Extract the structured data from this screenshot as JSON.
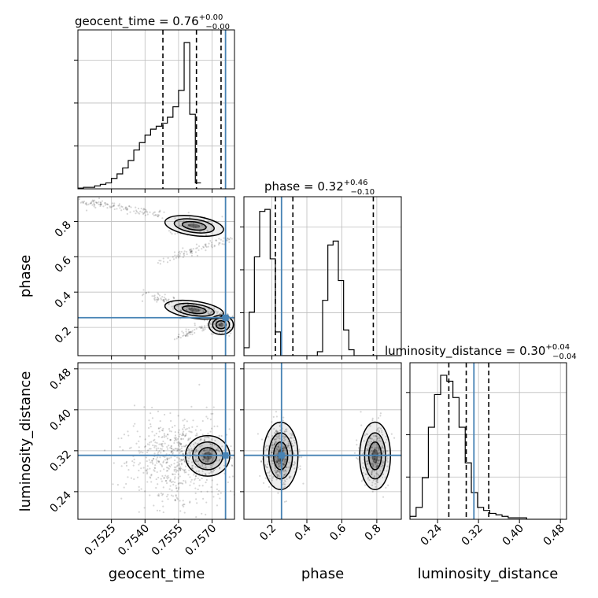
{
  "chart_data": {
    "type": "corner",
    "parameters": [
      "geocent_time",
      "phase",
      "luminosity_distance"
    ],
    "truth": {
      "geocent_time": 0.7576,
      "phase": 0.255,
      "luminosity_distance": 0.311
    },
    "titles": {
      "geocent_time": {
        "name": "geocent_time",
        "median": "0.76",
        "plus": "+0.00",
        "minus": "−0.00"
      },
      "phase": {
        "name": "phase",
        "median": "0.32",
        "plus": "+0.46",
        "minus": "−0.10"
      },
      "luminosity_distance": {
        "name": "luminosity_distance",
        "median": "0.30",
        "plus": "+0.04",
        "minus": "−0.04"
      }
    },
    "axis_labels": {
      "geocent_time": "geocent_time",
      "phase": "phase",
      "luminosity_distance": "luminosity_distance"
    },
    "ranges": {
      "geocent_time": [
        0.751,
        0.758
      ],
      "phase": [
        0.04,
        0.94
      ],
      "luminosity_distance": [
        0.186,
        0.492
      ]
    },
    "ticks": {
      "geocent_time": [
        "0.7525",
        "0.7540",
        "0.7555",
        "0.7570"
      ],
      "phase": [
        "0.2",
        "0.4",
        "0.6",
        "0.8"
      ],
      "luminosity_distance": [
        "0.24",
        "0.32",
        "0.40",
        "0.48"
      ]
    },
    "quantiles": {
      "geocent_time": [
        0.7548,
        0.7563,
        0.7574
      ],
      "phase": [
        0.22,
        0.32,
        0.78
      ],
      "luminosity_distance": [
        0.262,
        0.296,
        0.34
      ]
    },
    "histograms": {
      "geocent_time": {
        "edges_start": 0.751,
        "bin_width": 0.00025,
        "counts": [
          0.5,
          1,
          1,
          2,
          3,
          4,
          7,
          10,
          14,
          19,
          26,
          31,
          36,
          40,
          42,
          44,
          48,
          55,
          66,
          98,
          50,
          4
        ]
      },
      "phase": {
        "edges_start": 0.04,
        "bin_width": 0.03,
        "counts": [
          4,
          22,
          50,
          73,
          74,
          49,
          12,
          0,
          0,
          0,
          0,
          0,
          0,
          0,
          2,
          28,
          56,
          58,
          38,
          13,
          3,
          0,
          0,
          0,
          0,
          0,
          0,
          0,
          0,
          0
        ]
      },
      "luminosity_distance": {
        "edges_start": 0.186,
        "bin_width": 0.012,
        "counts": [
          2,
          8,
          28,
          62,
          84,
          97,
          93,
          82,
          62,
          38,
          18,
          8,
          6,
          4,
          3,
          2,
          1,
          1,
          1,
          0,
          0,
          0,
          0,
          0,
          0
        ]
      }
    },
    "grid": true
  }
}
